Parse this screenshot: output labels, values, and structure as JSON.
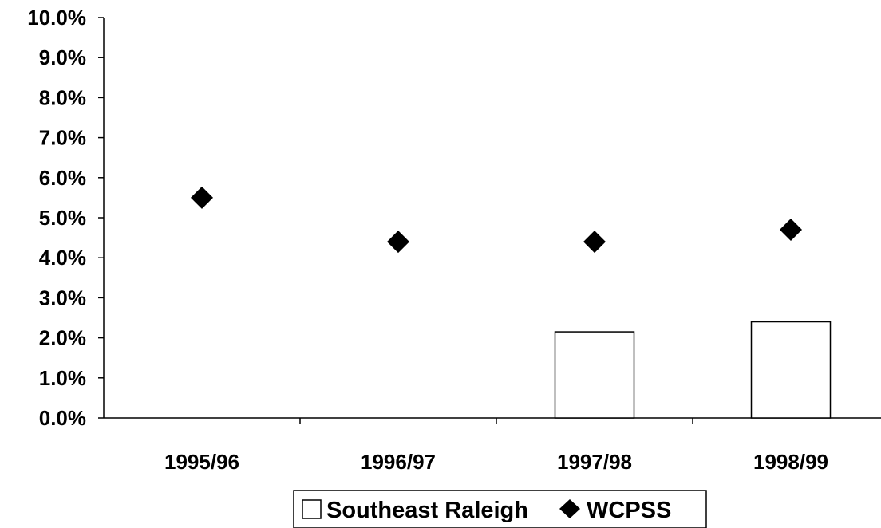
{
  "chart_data": {
    "type": "bar",
    "title": "",
    "xlabel": "",
    "ylabel": "",
    "categories": [
      "1995/96",
      "1996/97",
      "1997/98",
      "1998/99"
    ],
    "y_tick_labels": [
      "0.0%",
      "1.0%",
      "2.0%",
      "3.0%",
      "4.0%",
      "5.0%",
      "6.0%",
      "7.0%",
      "8.0%",
      "9.0%",
      "10.0%"
    ],
    "ylim": [
      0,
      10
    ],
    "y_unit": "%",
    "grid": false,
    "legend_position": "bottom",
    "series": [
      {
        "name": "Southeast Raleigh",
        "type": "bar",
        "values": [
          null,
          null,
          2.15,
          2.4
        ],
        "fill": "#ffffff",
        "stroke": "#000000"
      },
      {
        "name": "WCPSS",
        "type": "scatter",
        "marker": "diamond",
        "values": [
          5.5,
          4.4,
          4.4,
          4.7
        ],
        "fill": "#000000"
      }
    ]
  }
}
